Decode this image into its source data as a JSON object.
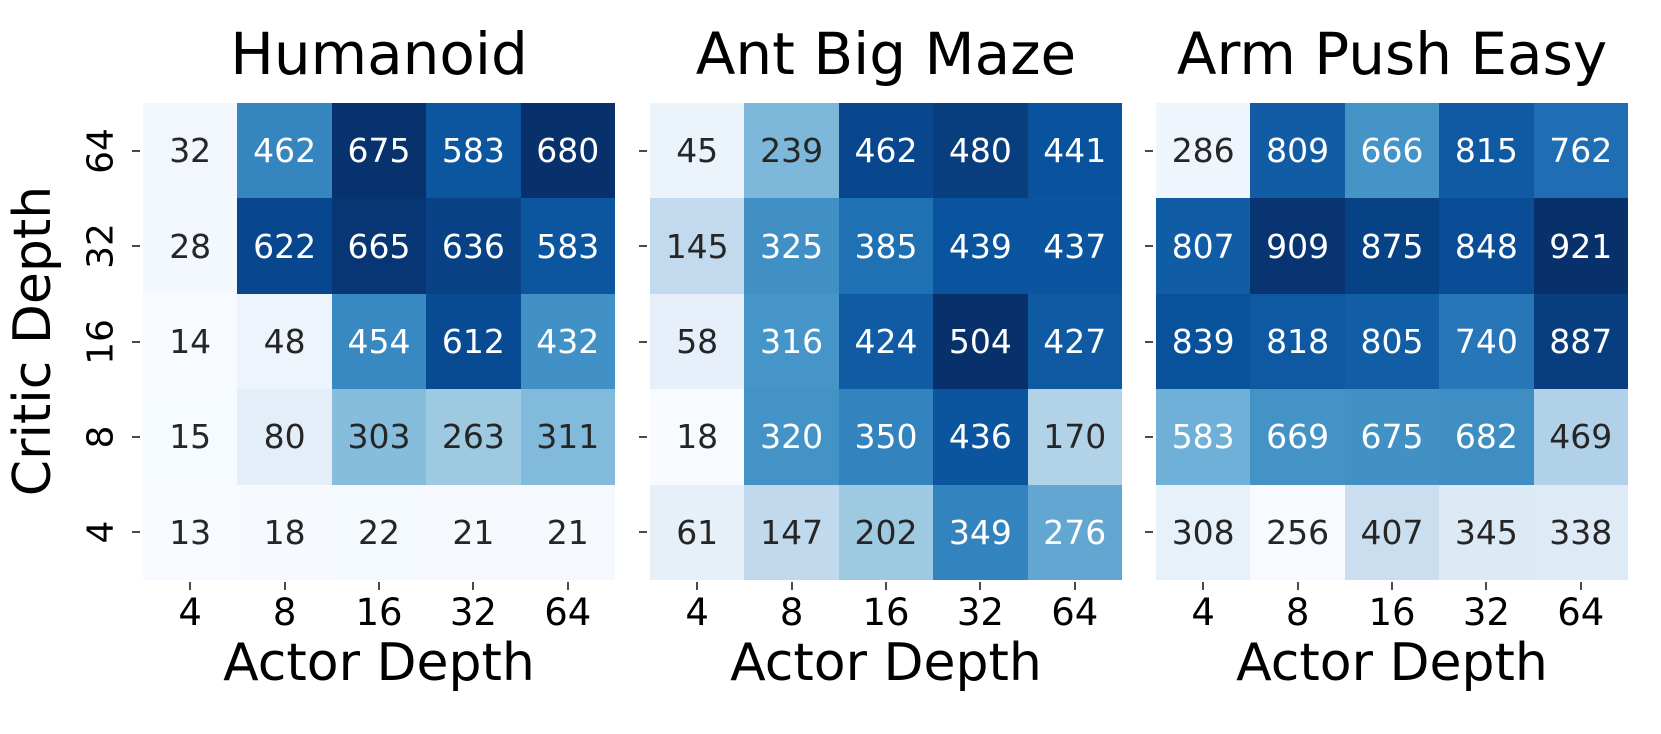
{
  "figure": {
    "background": "#ffffff",
    "ylabel": "Critic Depth",
    "annot_text_dark": "#262626",
    "annot_text_light": "#ffffff",
    "tick_color": "#4a4a4a",
    "colormap": {
      "name": "Blues",
      "anchors": [
        "#f7fbff",
        "#deebf7",
        "#c6dbef",
        "#9ecae1",
        "#6baed6",
        "#4292c6",
        "#2171b5",
        "#08519c",
        "#08306b"
      ]
    }
  },
  "chart_data": [
    {
      "type": "heatmap",
      "title": "Humanoid",
      "xlabel": "Actor Depth",
      "ylabel": "Critic Depth",
      "x_categories": [
        "4",
        "8",
        "16",
        "32",
        "64"
      ],
      "y_categories": [
        "64",
        "32",
        "16",
        "8",
        "4"
      ],
      "y_tick_labels_visible": true,
      "values": [
        [
          32,
          462,
          675,
          583,
          680
        ],
        [
          28,
          622,
          665,
          636,
          583
        ],
        [
          14,
          48,
          454,
          612,
          432
        ],
        [
          15,
          80,
          303,
          263,
          311
        ],
        [
          13,
          18,
          22,
          21,
          21
        ]
      ]
    },
    {
      "type": "heatmap",
      "title": "Ant Big Maze",
      "xlabel": "Actor Depth",
      "ylabel": "Critic Depth",
      "x_categories": [
        "4",
        "8",
        "16",
        "32",
        "64"
      ],
      "y_categories": [
        "64",
        "32",
        "16",
        "8",
        "4"
      ],
      "y_tick_labels_visible": false,
      "values": [
        [
          45,
          239,
          462,
          480,
          441
        ],
        [
          145,
          325,
          385,
          439,
          437
        ],
        [
          58,
          316,
          424,
          504,
          427
        ],
        [
          18,
          320,
          350,
          436,
          170
        ],
        [
          61,
          147,
          202,
          349,
          276
        ]
      ]
    },
    {
      "type": "heatmap",
      "title": "Arm Push Easy",
      "xlabel": "Actor Depth",
      "ylabel": "Critic Depth",
      "x_categories": [
        "4",
        "8",
        "16",
        "32",
        "64"
      ],
      "y_categories": [
        "64",
        "32",
        "16",
        "8",
        "4"
      ],
      "y_tick_labels_visible": false,
      "values": [
        [
          286,
          809,
          666,
          815,
          762
        ],
        [
          807,
          909,
          875,
          848,
          921
        ],
        [
          839,
          818,
          805,
          740,
          887
        ],
        [
          583,
          669,
          675,
          682,
          469
        ],
        [
          308,
          256,
          407,
          345,
          338
        ]
      ]
    }
  ]
}
